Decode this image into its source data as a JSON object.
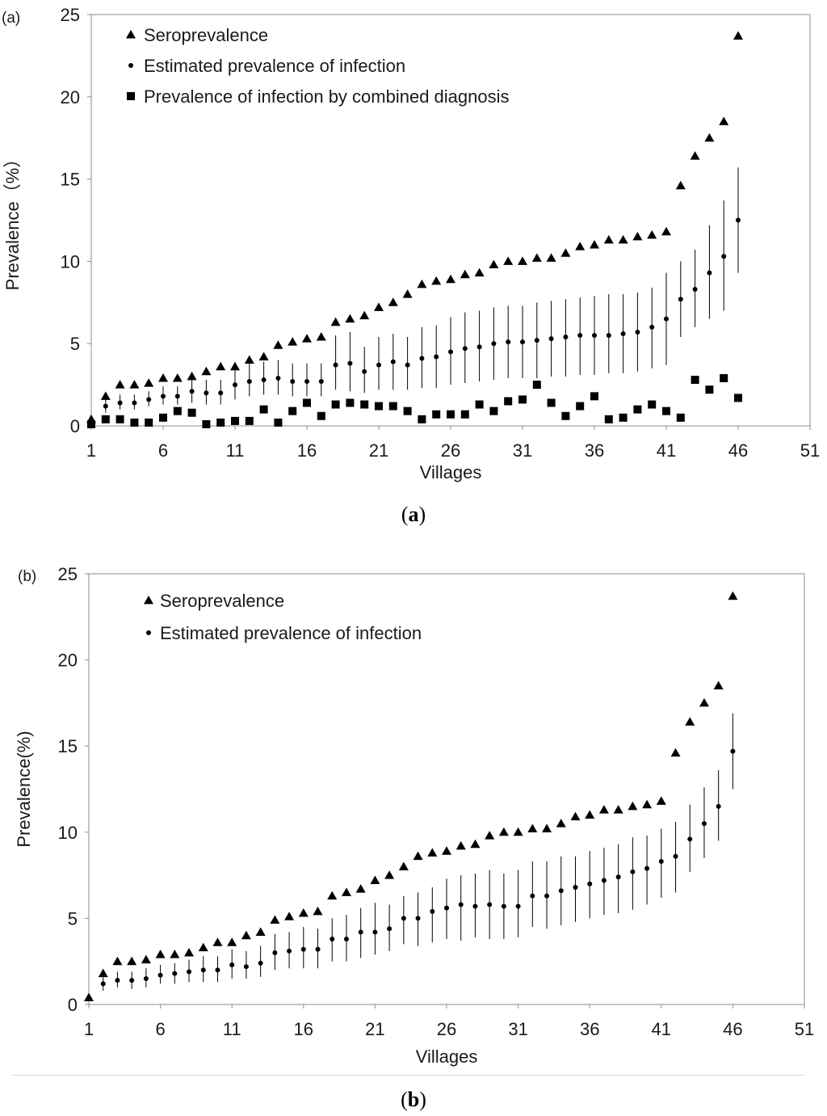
{
  "chart_data": [
    {
      "type": "scatter",
      "panel_label": "(a)",
      "caption": "a",
      "xlabel": "Villages",
      "ylabel": "Prevalence（%）",
      "xlim": [
        1,
        51
      ],
      "ylim": [
        0,
        25
      ],
      "x_ticks": [
        1,
        6,
        11,
        16,
        21,
        26,
        31,
        36,
        41,
        46,
        51
      ],
      "y_ticks": [
        0,
        5,
        10,
        15,
        20,
        25
      ],
      "legend_position": "top-left",
      "series": [
        {
          "name": "Seroprevalence",
          "marker": "triangle",
          "x": [
            1,
            2,
            3,
            4,
            5,
            6,
            7,
            8,
            9,
            10,
            11,
            12,
            13,
            14,
            15,
            16,
            17,
            18,
            19,
            20,
            21,
            22,
            23,
            24,
            25,
            26,
            27,
            28,
            29,
            30,
            31,
            32,
            33,
            34,
            35,
            36,
            37,
            38,
            39,
            40,
            41,
            42,
            43,
            44,
            45,
            46
          ],
          "values": [
            0.4,
            1.8,
            2.5,
            2.5,
            2.6,
            2.9,
            2.9,
            3.0,
            3.3,
            3.6,
            3.6,
            4.0,
            4.2,
            4.9,
            5.1,
            5.3,
            5.4,
            6.3,
            6.5,
            6.7,
            7.2,
            7.5,
            8.0,
            8.6,
            8.8,
            8.9,
            9.2,
            9.3,
            9.8,
            10.0,
            10.0,
            10.2,
            10.2,
            10.5,
            10.9,
            11.0,
            11.3,
            11.3,
            11.5,
            11.6,
            11.8,
            14.6,
            16.4,
            17.5,
            18.5,
            23.7
          ]
        },
        {
          "name": "Estimated prevalence of infection",
          "marker": "dot",
          "x": [
            1,
            2,
            3,
            4,
            5,
            6,
            7,
            8,
            9,
            10,
            11,
            12,
            13,
            14,
            15,
            16,
            17,
            18,
            19,
            20,
            21,
            22,
            23,
            24,
            25,
            26,
            27,
            28,
            29,
            30,
            31,
            32,
            33,
            34,
            35,
            36,
            37,
            38,
            39,
            40,
            41,
            42,
            43,
            44,
            45,
            46
          ],
          "values": [
            0.3,
            1.2,
            1.4,
            1.4,
            1.6,
            1.8,
            1.8,
            2.1,
            2.0,
            2.0,
            2.5,
            2.7,
            2.8,
            2.9,
            2.7,
            2.7,
            2.7,
            3.7,
            3.8,
            3.3,
            3.7,
            3.9,
            3.7,
            4.1,
            4.2,
            4.5,
            4.7,
            4.8,
            5.0,
            5.1,
            5.1,
            5.2,
            5.3,
            5.4,
            5.5,
            5.5,
            5.5,
            5.6,
            5.7,
            6.0,
            6.5,
            7.7,
            8.3,
            9.3,
            10.3,
            12.5
          ],
          "lower": [
            0.1,
            0.8,
            1.0,
            1.0,
            1.2,
            1.3,
            1.3,
            1.4,
            1.3,
            1.3,
            1.6,
            1.8,
            1.9,
            1.9,
            1.8,
            1.8,
            1.8,
            2.2,
            2.1,
            2.0,
            2.2,
            2.2,
            2.2,
            2.3,
            2.3,
            2.5,
            2.6,
            2.7,
            2.8,
            2.9,
            2.9,
            2.9,
            3.0,
            3.0,
            3.1,
            3.1,
            3.2,
            3.2,
            3.3,
            3.5,
            3.7,
            5.4,
            6.0,
            6.5,
            7.0,
            9.3
          ],
          "upper": [
            0.6,
            1.7,
            1.9,
            1.9,
            2.1,
            2.4,
            2.4,
            2.8,
            2.8,
            2.8,
            3.4,
            3.8,
            3.9,
            4.0,
            3.8,
            3.8,
            3.8,
            5.5,
            5.7,
            4.8,
            5.4,
            5.6,
            5.4,
            6.0,
            6.1,
            6.6,
            6.9,
            7.0,
            7.2,
            7.3,
            7.3,
            7.5,
            7.6,
            7.7,
            7.8,
            7.9,
            8.0,
            8.0,
            8.1,
            8.4,
            9.3,
            10.0,
            10.7,
            12.2,
            13.7,
            15.7
          ]
        },
        {
          "name": "Prevalence of infection by combined diagnosis",
          "marker": "square",
          "x": [
            1,
            2,
            3,
            4,
            5,
            6,
            7,
            8,
            9,
            10,
            11,
            12,
            13,
            14,
            15,
            16,
            17,
            18,
            19,
            20,
            21,
            22,
            23,
            24,
            25,
            26,
            27,
            28,
            29,
            30,
            31,
            32,
            33,
            34,
            35,
            36,
            37,
            38,
            39,
            40,
            41,
            42,
            43,
            44,
            45,
            46
          ],
          "values": [
            0.1,
            0.4,
            0.4,
            0.2,
            0.2,
            0.5,
            0.9,
            0.8,
            0.1,
            0.2,
            0.3,
            0.3,
            1.0,
            0.2,
            0.9,
            1.4,
            0.6,
            1.3,
            1.4,
            1.3,
            1.2,
            1.2,
            0.9,
            0.4,
            0.7,
            0.7,
            0.7,
            1.3,
            0.9,
            1.5,
            1.6,
            2.5,
            1.4,
            0.6,
            1.2,
            1.8,
            0.4,
            0.5,
            1.0,
            1.3,
            0.9,
            0.5,
            2.8,
            2.2,
            2.9,
            1.7
          ]
        }
      ]
    },
    {
      "type": "scatter",
      "panel_label": "(b)",
      "caption": "b",
      "xlabel": "Villages",
      "ylabel": "Prevalence(%)",
      "xlim": [
        1,
        51
      ],
      "ylim": [
        0,
        25
      ],
      "x_ticks": [
        1,
        6,
        11,
        16,
        21,
        26,
        31,
        36,
        41,
        46,
        51
      ],
      "y_ticks": [
        0,
        5,
        10,
        15,
        20,
        25
      ],
      "legend_position": "top-left",
      "series": [
        {
          "name": "Seroprevalence",
          "marker": "triangle",
          "x": [
            1,
            2,
            3,
            4,
            5,
            6,
            7,
            8,
            9,
            10,
            11,
            12,
            13,
            14,
            15,
            16,
            17,
            18,
            19,
            20,
            21,
            22,
            23,
            24,
            25,
            26,
            27,
            28,
            29,
            30,
            31,
            32,
            33,
            34,
            35,
            36,
            37,
            38,
            39,
            40,
            41,
            42,
            43,
            44,
            45,
            46
          ],
          "values": [
            0.4,
            1.8,
            2.5,
            2.5,
            2.6,
            2.9,
            2.9,
            3.0,
            3.3,
            3.6,
            3.6,
            4.0,
            4.2,
            4.9,
            5.1,
            5.3,
            5.4,
            6.3,
            6.5,
            6.7,
            7.2,
            7.5,
            8.0,
            8.6,
            8.8,
            8.9,
            9.2,
            9.3,
            9.8,
            10.0,
            10.0,
            10.2,
            10.2,
            10.5,
            10.9,
            11.0,
            11.3,
            11.3,
            11.5,
            11.6,
            11.8,
            14.6,
            16.4,
            17.5,
            18.5,
            23.7
          ]
        },
        {
          "name": "Estimated prevalence of infection",
          "marker": "dot",
          "x": [
            2,
            3,
            4,
            5,
            6,
            7,
            8,
            9,
            10,
            11,
            12,
            13,
            14,
            15,
            16,
            17,
            18,
            19,
            20,
            21,
            22,
            23,
            24,
            25,
            26,
            27,
            28,
            29,
            30,
            31,
            32,
            33,
            34,
            35,
            36,
            37,
            38,
            39,
            40,
            41,
            42,
            43,
            44,
            45,
            46
          ],
          "values": [
            1.2,
            1.4,
            1.4,
            1.5,
            1.7,
            1.8,
            1.9,
            2.0,
            2.0,
            2.3,
            2.2,
            2.4,
            3.0,
            3.1,
            3.2,
            3.2,
            3.8,
            3.8,
            4.2,
            4.2,
            4.4,
            5.0,
            5.0,
            5.4,
            5.6,
            5.8,
            5.7,
            5.8,
            5.7,
            5.7,
            6.3,
            6.3,
            6.6,
            6.8,
            7.0,
            7.2,
            7.4,
            7.7,
            7.9,
            8.3,
            8.6,
            9.6,
            10.5,
            11.5,
            14.7
          ],
          "lower": [
            0.8,
            1.0,
            0.9,
            1.0,
            1.2,
            1.2,
            1.3,
            1.3,
            1.3,
            1.5,
            1.5,
            1.6,
            2.0,
            2.1,
            2.1,
            2.1,
            2.5,
            2.5,
            2.7,
            2.9,
            3.1,
            3.5,
            3.4,
            3.6,
            3.8,
            3.7,
            3.9,
            3.8,
            3.8,
            3.9,
            4.5,
            4.4,
            4.6,
            4.8,
            5.0,
            5.2,
            5.3,
            5.5,
            5.8,
            6.2,
            6.5,
            7.7,
            8.5,
            9.5,
            12.5
          ],
          "upper": [
            1.7,
            1.9,
            1.9,
            2.1,
            2.3,
            2.4,
            2.6,
            2.8,
            2.8,
            3.2,
            3.1,
            3.4,
            4.1,
            4.2,
            4.5,
            4.4,
            5.0,
            5.2,
            5.6,
            5.9,
            5.8,
            6.3,
            6.5,
            6.8,
            7.3,
            7.5,
            7.6,
            7.8,
            7.6,
            7.8,
            8.3,
            8.3,
            8.6,
            8.6,
            8.9,
            9.1,
            9.3,
            9.7,
            9.8,
            10.2,
            10.6,
            11.6,
            12.6,
            13.6,
            16.9
          ]
        }
      ]
    }
  ]
}
